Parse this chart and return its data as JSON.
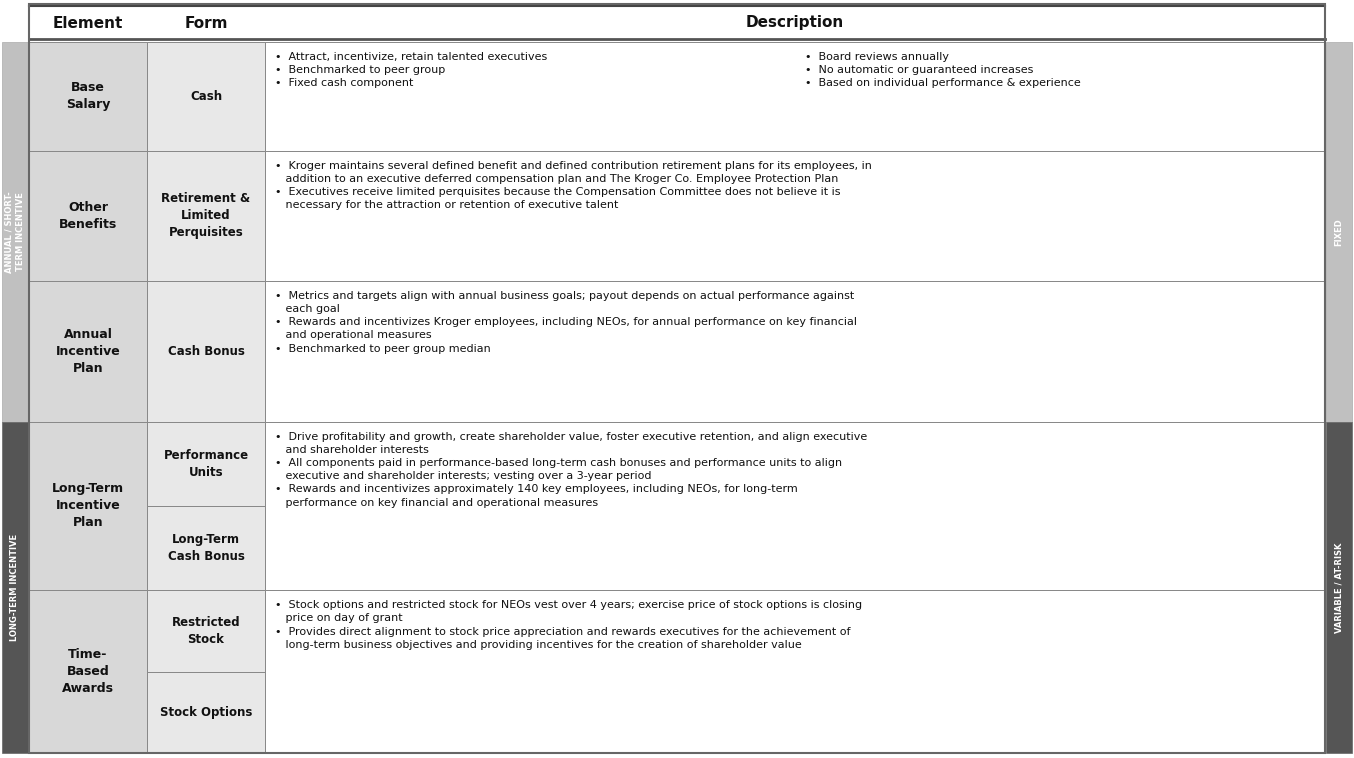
{
  "sidebar_light_color": "#c0c0c0",
  "sidebar_dark_color": "#555555",
  "cell_bg_element": "#d8d8d8",
  "cell_bg_form": "#e8e8e8",
  "cell_bg_desc": "#ffffff",
  "border_color": "#888888",
  "header_line_color": "#444444",
  "text_color_dark": "#111111",
  "text_color_white": "#ffffff",
  "rows": [
    {
      "element": "Base\nSalary",
      "form_items": [
        "Cash"
      ],
      "desc_left": "•  Attract, incentivize, retain talented executives\n•  Benchmarked to peer group\n•  Fixed cash component",
      "desc_right": "•  Board reviews annually\n•  No automatic or guaranteed increases\n•  Based on individual performance & experience",
      "two_col": true,
      "group": "top"
    },
    {
      "element": "Other\nBenefits",
      "form_items": [
        "Retirement &\nLimited\nPerquisites"
      ],
      "desc_left": "•  Kroger maintains several defined benefit and defined contribution retirement plans for its employees, in\n   addition to an executive deferred compensation plan and The Kroger Co. Employee Protection Plan\n•  Executives receive limited perquisites because the Compensation Committee does not believe it is\n   necessary for the attraction or retention of executive talent",
      "desc_right": "",
      "two_col": false,
      "group": "top"
    },
    {
      "element": "Annual\nIncentive\nPlan",
      "form_items": [
        "Cash Bonus"
      ],
      "desc_left": "•  Metrics and targets align with annual business goals; payout depends on actual performance against\n   each goal\n•  Rewards and incentivizes Kroger employees, including NEOs, for annual performance on key financial\n   and operational measures\n•  Benchmarked to peer group median",
      "desc_right": "",
      "two_col": false,
      "group": "top"
    },
    {
      "element": "Long-Term\nIncentive\nPlan",
      "form_items": [
        "Performance\nUnits",
        "Long-Term\nCash Bonus"
      ],
      "desc_left": "•  Drive profitability and growth, create shareholder value, foster executive retention, and align executive\n   and shareholder interests\n•  All components paid in performance-based long-term cash bonuses and performance units to align\n   executive and shareholder interests; vesting over a 3-year period\n•  Rewards and incentivizes approximately 140 key employees, including NEOs, for long-term\n   performance on key financial and operational measures",
      "desc_right": "",
      "two_col": false,
      "group": "bottom"
    },
    {
      "element": "Time-\nBased\nAwards",
      "form_items": [
        "Restricted\nStock",
        "Stock Options"
      ],
      "desc_left": "•  Stock options and restricted stock for NEOs vest over 4 years; exercise price of stock options is closing\n   price on day of grant\n•  Provides direct alignment to stock price appreciation and rewards executives for the achievement of\n   long-term business objectives and providing incentives for the creation of shareholder value",
      "desc_right": "",
      "two_col": false,
      "group": "bottom"
    }
  ]
}
